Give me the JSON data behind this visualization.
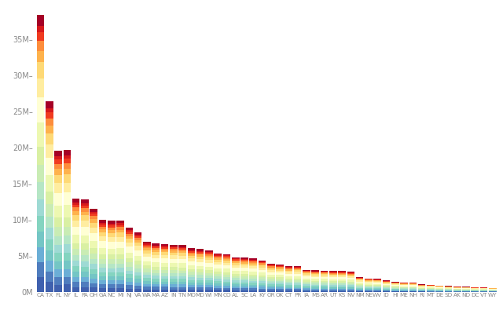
{
  "states": [
    "CA",
    "TX",
    "FL",
    "NY",
    "IL",
    "PA",
    "OH",
    "GA",
    "NC",
    "MI",
    "NJ",
    "VA",
    "WA",
    "MA",
    "AZ",
    "IN",
    "TN",
    "MO",
    "MD",
    "WI",
    "MN",
    "CO",
    "AL",
    "SC",
    "LA",
    "KY",
    "OR",
    "OK",
    "CT",
    "PR",
    "IA",
    "MS",
    "AR",
    "UT",
    "KS",
    "NV",
    "NM",
    "NE",
    "WV",
    "ID",
    "HI",
    "ME",
    "NH",
    "RI",
    "MT",
    "DE",
    "SD",
    "AK",
    "ND",
    "DC",
    "VT",
    "WY"
  ],
  "totals": [
    38332521,
    26448193,
    19552860,
    19651127,
    12882135,
    12773801,
    11570808,
    9992167,
    9848060,
    9895622,
    8899339,
    8260405,
    6971406,
    6692824,
    6626624,
    6570902,
    6495978,
    6044171,
    5928814,
    5742713,
    5379539,
    5268367,
    4833722,
    4774839,
    4625470,
    4395295,
    3930065,
    3850568,
    3596080,
    3615086,
    3090416,
    2991207,
    2959373,
    2900872,
    2893957,
    2790136,
    2085109,
    1868516,
    1854304,
    1612136,
    1404054,
    1328302,
    1323459,
    1051511,
    1015165,
    917092,
    844877,
    735601,
    723393,
    646449,
    634756,
    576412
  ],
  "age_fractions": [
    0.063,
    0.064,
    0.065,
    0.065,
    0.067,
    0.068,
    0.07,
    0.072,
    0.1,
    0.105,
    0.11,
    0.108,
    0.1,
    0.065,
    0.04,
    0.038
  ],
  "colors": [
    "#313695",
    "#4575b4",
    "#74add1",
    "#abd9e9",
    "#74c476",
    "#a1d99b",
    "#c7e9c0",
    "#ffffbf",
    "#ffffb2",
    "#fecc5c",
    "#fd8d3c",
    "#f03b20",
    "#bd0026",
    "#e31a1c",
    "#fc4e2a",
    "#fd8d3c"
  ],
  "background_color": "#ffffff",
  "tick_color": "#888888",
  "ylim": [
    0,
    40000000
  ],
  "ytick_vals": [
    0,
    5000000,
    10000000,
    15000000,
    20000000,
    25000000,
    30000000,
    35000000
  ],
  "ytick_labels": [
    "0M",
    "5M–",
    "10M–",
    "15M–",
    "20M–",
    "25M–",
    "30M–",
    "35M–"
  ]
}
